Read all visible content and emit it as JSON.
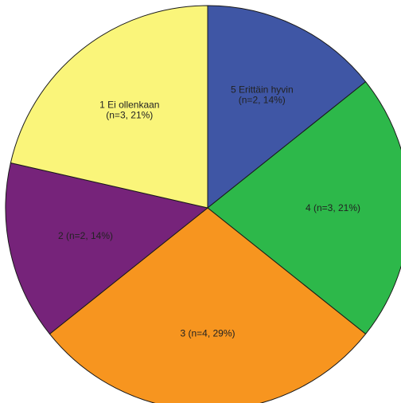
{
  "chart_data": {
    "type": "pie",
    "title": "",
    "start_angle_deg": 0,
    "direction": "clockwise",
    "total_n": 14,
    "slices": [
      {
        "label_lines": [
          "5 Erittäin hyvin",
          "(n=2, 14%)"
        ],
        "n": 2,
        "percent": 14,
        "color": "#3f56a5"
      },
      {
        "label_lines": [
          "4 (n=3, 21%)"
        ],
        "n": 3,
        "percent": 21,
        "color": "#2db84a"
      },
      {
        "label_lines": [
          "3 (n=4, 29%)"
        ],
        "n": 4,
        "percent": 29,
        "color": "#f7951f"
      },
      {
        "label_lines": [
          "2 (n=2, 14%)"
        ],
        "n": 2,
        "percent": 14,
        "color": "#76237a"
      },
      {
        "label_lines": [
          "1 Ei ollenkaan",
          "(n=3, 21%)"
        ],
        "n": 3,
        "percent": 21,
        "color": "#faf57a"
      }
    ]
  }
}
